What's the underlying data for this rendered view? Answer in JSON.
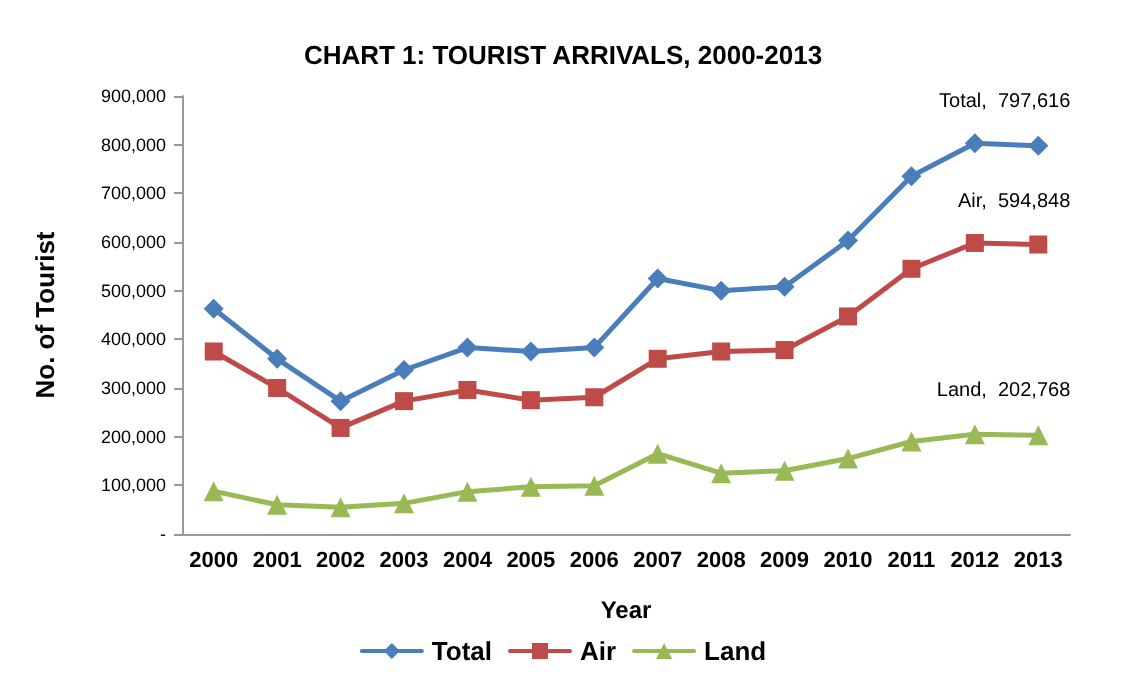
{
  "chart_data": {
    "type": "line",
    "title": "CHART 1: TOURIST ARRIVALS, 2000-2013",
    "xlabel": "Year",
    "ylabel": "No. of Tourist",
    "categories": [
      "2000",
      "2001",
      "2002",
      "2003",
      "2004",
      "2005",
      "2006",
      "2007",
      "2008",
      "2009",
      "2010",
      "2011",
      "2012",
      "2013"
    ],
    "series": [
      {
        "name": "Total",
        "color": "#4a7ebb",
        "marker": "diamond",
        "values": [
          463000,
          360000,
          273000,
          337000,
          383000,
          375000,
          383000,
          525000,
          500000,
          508000,
          603000,
          735000,
          803000,
          797616
        ],
        "value_labels": [
          null,
          null,
          null,
          null,
          null,
          null,
          null,
          null,
          null,
          null,
          null,
          null,
          null,
          "Total,  797,616"
        ]
      },
      {
        "name": "Air",
        "color": "#be4b48",
        "marker": "square",
        "values": [
          375000,
          300000,
          218000,
          273000,
          296000,
          275000,
          281000,
          360000,
          375000,
          378000,
          447000,
          545000,
          598000,
          594848
        ],
        "value_labels": [
          null,
          null,
          null,
          null,
          null,
          null,
          null,
          null,
          null,
          null,
          null,
          null,
          null,
          "Air,  594,848"
        ]
      },
      {
        "name": "Land",
        "color": "#98b954",
        "marker": "triangle",
        "values": [
          88000,
          60000,
          55000,
          63000,
          87000,
          97000,
          99000,
          165000,
          125000,
          130000,
          155000,
          190000,
          205000,
          202768
        ],
        "value_labels": [
          null,
          null,
          null,
          null,
          null,
          null,
          null,
          null,
          null,
          null,
          null,
          null,
          null,
          "Land,  202,768"
        ]
      }
    ],
    "ylim": [
      0,
      900000
    ],
    "yticks": [
      {
        "value": 0,
        "label": "-"
      },
      {
        "value": 100000,
        "label": "100,000"
      },
      {
        "value": 200000,
        "label": "200,000"
      },
      {
        "value": 300000,
        "label": "300,000"
      },
      {
        "value": 400000,
        "label": "400,000"
      },
      {
        "value": 500000,
        "label": "500,000"
      },
      {
        "value": 600000,
        "label": "600,000"
      },
      {
        "value": 700000,
        "label": "700,000"
      },
      {
        "value": 800000,
        "label": "800,000"
      },
      {
        "value": 900000,
        "label": "900,000"
      }
    ],
    "grid": false,
    "legend": "bottom",
    "line_style": "solid"
  }
}
